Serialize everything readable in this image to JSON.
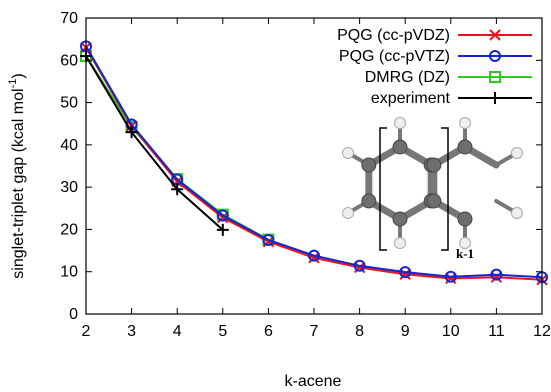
{
  "chart_data": {
    "type": "line",
    "xlabel": "k-acene",
    "ylabel": "singlet-triplet gap (kcal mol",
    "ylabel_sup": "-1",
    "ylabel_close": ")",
    "xlim": [
      2,
      12
    ],
    "ylim": [
      0,
      70
    ],
    "x_ticks": [
      2,
      3,
      4,
      5,
      6,
      7,
      8,
      9,
      10,
      11,
      12
    ],
    "y_ticks": [
      0,
      10,
      20,
      30,
      40,
      50,
      60,
      70
    ],
    "grid": false,
    "legend_position": "top-right",
    "series": [
      {
        "name": "PQG (cc-pVDZ)",
        "color": "#e8151b",
        "marker": "x",
        "x": [
          2,
          3,
          4,
          5,
          6,
          7,
          8,
          9,
          10,
          11,
          12
        ],
        "y": [
          63.0,
          44.5,
          31.3,
          22.8,
          17.1,
          13.3,
          11.0,
          9.4,
          8.4,
          8.7,
          8.1
        ]
      },
      {
        "name": "PQG (cc-pVTZ)",
        "color": "#1424d1",
        "marker": "circle",
        "x": [
          2,
          3,
          4,
          5,
          6,
          7,
          8,
          9,
          10,
          11,
          12
        ],
        "y": [
          63.3,
          44.8,
          31.8,
          23.3,
          17.5,
          13.8,
          11.4,
          9.9,
          8.8,
          9.3,
          8.7
        ]
      },
      {
        "name": "DMRG (DZ)",
        "color": "#2ccc18",
        "marker": "square",
        "x": [
          2,
          3,
          4,
          5,
          6
        ],
        "y": [
          61.0,
          44.2,
          31.9,
          23.5,
          17.6
        ]
      },
      {
        "name": "experiment",
        "color": "#000000",
        "marker": "plus",
        "x": [
          2,
          3,
          4,
          5
        ],
        "y": [
          61.0,
          43.0,
          29.5,
          19.9
        ]
      }
    ],
    "inset_label": "k-1"
  }
}
